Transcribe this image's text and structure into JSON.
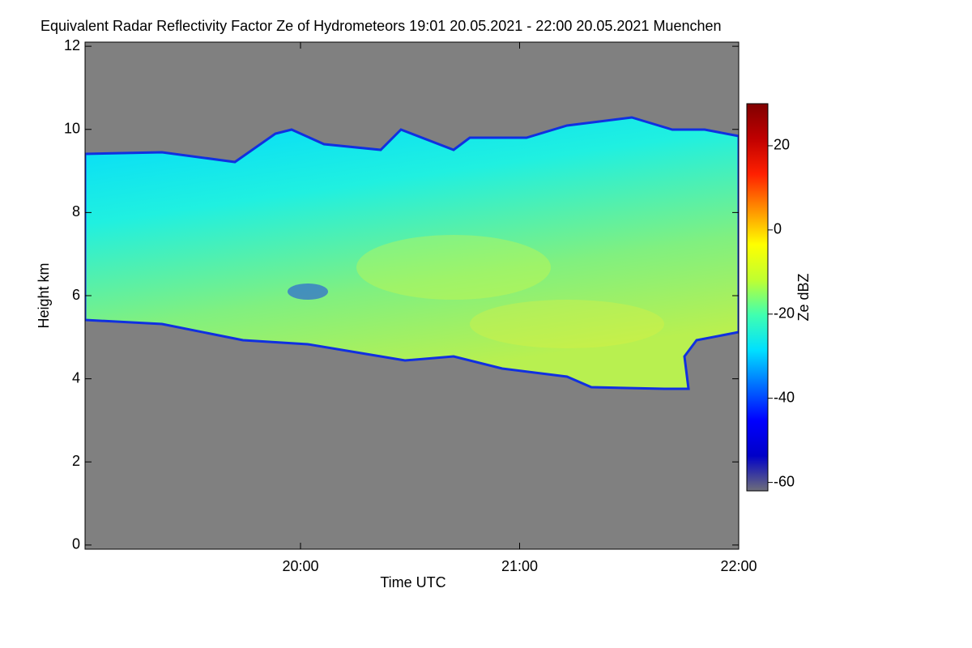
{
  "chart_data": {
    "type": "heatmap",
    "title": "Equivalent Radar Reflectivity Factor Ze of Hydrometeors   19:01 20.05.2021 - 22:00 20.05.2021 Muenchen",
    "xlabel": "Time UTC",
    "ylabel": "Height km",
    "colorbar_label": "Ze dBZ",
    "xlim": [
      19.0167,
      22.0
    ],
    "xticks": [
      {
        "value": 20,
        "label": "20:00"
      },
      {
        "value": 21,
        "label": "21:00"
      },
      {
        "value": 22,
        "label": "22:00"
      }
    ],
    "ylim": [
      -0.1,
      12.1
    ],
    "yticks": [
      0,
      2,
      4,
      6,
      8,
      10,
      12
    ],
    "clim": [
      -62,
      30
    ],
    "cticks": [
      -60,
      -40,
      -20,
      0,
      20
    ],
    "background": "#808080",
    "colormap": [
      "#6e6e7a",
      "#0000c8",
      "#0000ff",
      "#0070ff",
      "#00e0ff",
      "#40ffb0",
      "#c0ff30",
      "#ffff00",
      "#ff9000",
      "#ff2000",
      "#c00000",
      "#800000"
    ]
  }
}
